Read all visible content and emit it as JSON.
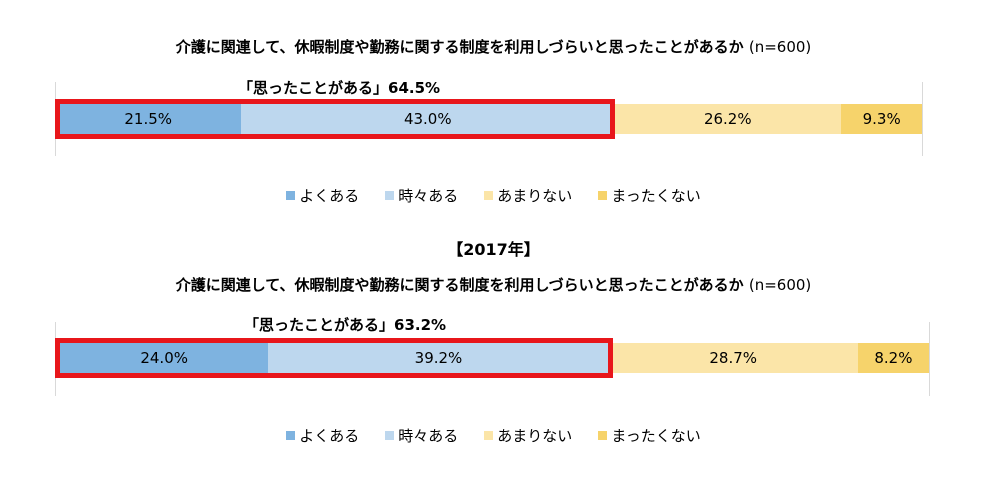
{
  "year_label": "【2017年】",
  "chart_data": [
    {
      "type": "bar",
      "orientation": "horizontal",
      "stacked": true,
      "title": "介護に関連して、休暇制度や勤務に関する制度を利用しづらいと思ったことがあるか",
      "sample_size": "(n=600)",
      "highlight_label": "「思ったことがある」64.5%",
      "series": [
        {
          "name": "よくある",
          "values": [
            21.5
          ],
          "label": "21.5%",
          "color": "#7eb3e0"
        },
        {
          "name": "時々ある",
          "values": [
            43.0
          ],
          "label": "43.0%",
          "color": "#bdd7ee"
        },
        {
          "name": "あまりない",
          "values": [
            26.2
          ],
          "label": "26.2%",
          "color": "#fbe5a8"
        },
        {
          "name": "まったくない",
          "values": [
            9.3
          ],
          "label": "9.3%",
          "color": "#f6d36b"
        }
      ]
    },
    {
      "type": "bar",
      "orientation": "horizontal",
      "stacked": true,
      "title": "介護に関連して、休暇制度や勤務に関する制度を利用しづらいと思ったことがあるか",
      "sample_size": "(n=600)",
      "highlight_label": "「思ったことがある」63.2%",
      "series": [
        {
          "name": "よくある",
          "values": [
            24.0
          ],
          "label": "24.0%",
          "color": "#7eb3e0"
        },
        {
          "name": "時々ある",
          "values": [
            39.2
          ],
          "label": "39.2%",
          "color": "#bdd7ee"
        },
        {
          "name": "あまりない",
          "values": [
            28.7
          ],
          "label": "28.7%",
          "color": "#fbe5a8"
        },
        {
          "name": "まったくない",
          "values": [
            8.2
          ],
          "label": "8.2%",
          "color": "#f6d36b"
        }
      ]
    }
  ]
}
